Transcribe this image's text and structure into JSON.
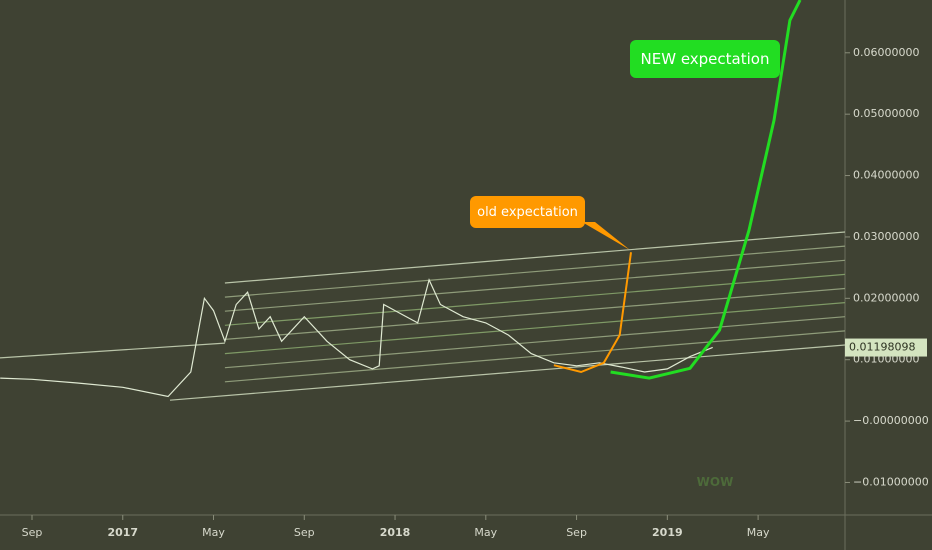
{
  "chart_data": {
    "type": "line",
    "xlim": [
      -1.41,
      35.83
    ],
    "ylim": [
      -0.0153,
      0.0686
    ],
    "xticks": [
      {
        "value": 0,
        "label": "Sep"
      },
      {
        "value": 4,
        "label": "2017"
      },
      {
        "value": 8,
        "label": "May"
      },
      {
        "value": 12,
        "label": "Sep"
      },
      {
        "value": 16,
        "label": "2018"
      },
      {
        "value": 20,
        "label": "May"
      },
      {
        "value": 24,
        "label": "Sep"
      },
      {
        "value": 28,
        "label": "2019"
      },
      {
        "value": 32,
        "label": "May"
      }
    ],
    "yticks": [
      {
        "value": 0.06,
        "label": "0.06000000"
      },
      {
        "value": 0.05,
        "label": "0.05000000"
      },
      {
        "value": 0.04,
        "label": "0.04000000"
      },
      {
        "value": 0.03,
        "label": "0.03000000"
      },
      {
        "value": 0.02,
        "label": "0.02000000"
      },
      {
        "value": 0.01,
        "label": "0.01000000"
      },
      {
        "value": 0,
        "label": "−0.00000000"
      },
      {
        "value": -0.01,
        "label": "−0.01000000"
      }
    ],
    "series": [
      {
        "color": "#dfe9d2",
        "x": [
          -1.4,
          0,
          2,
          4,
          6,
          7,
          7.6,
          8,
          8.5,
          9,
          9.5,
          10,
          10.5,
          11,
          12,
          13,
          14,
          15,
          15.3,
          15.5,
          16,
          17,
          17.5,
          18,
          19,
          20,
          21,
          22,
          23,
          24,
          25,
          26,
          27,
          28,
          29,
          30
        ],
        "values": [
          0.007,
          0.0068,
          0.0062,
          0.0055,
          0.004,
          0.008,
          0.02,
          0.018,
          0.013,
          0.019,
          0.021,
          0.015,
          0.017,
          0.013,
          0.017,
          0.013,
          0.01,
          0.0085,
          0.009,
          0.019,
          0.018,
          0.016,
          0.023,
          0.019,
          0.017,
          0.016,
          0.014,
          0.011,
          0.0095,
          0.009,
          0.0095,
          0.0088,
          0.008,
          0.0085,
          0.0105,
          0.012
        ]
      }
    ],
    "channel_lines": [
      {
        "x": [
          6.08,
          35.83
        ],
        "values": [
          0.0034,
          0.0124
        ],
        "color": "#b9c4a8"
      },
      {
        "x": [
          8.5,
          35.83
        ],
        "values": [
          0.0064,
          0.0147
        ],
        "color": "#8f9c7a"
      },
      {
        "x": [
          8.5,
          35.83
        ],
        "values": [
          0.0087,
          0.017
        ],
        "color": "#8f9c7a"
      },
      {
        "x": [
          8.5,
          35.83
        ],
        "values": [
          0.011,
          0.0193
        ],
        "color": "#7f9a66"
      },
      {
        "x": [
          8.5,
          35.83
        ],
        "values": [
          0.0133,
          0.0216
        ],
        "color": "#8f9c7a"
      },
      {
        "x": [
          8.5,
          35.83
        ],
        "values": [
          0.0156,
          0.0239
        ],
        "color": "#7f9a66"
      },
      {
        "x": [
          8.5,
          35.83
        ],
        "values": [
          0.0179,
          0.0262
        ],
        "color": "#8f9c7a"
      },
      {
        "x": [
          8.5,
          35.83
        ],
        "values": [
          0.0202,
          0.0285
        ],
        "color": "#8f9c7a"
      },
      {
        "x": [
          8.5,
          35.83
        ],
        "values": [
          0.0225,
          0.0308
        ],
        "color": "#b9c4a8"
      },
      {
        "x": [
          -1.41,
          8.5
        ],
        "values": [
          0.0103,
          0.0127
        ],
        "color": "#b9c4a8"
      }
    ],
    "curves": [
      {
        "color": "#ff9900",
        "x": [
          23.0,
          24.2,
          25.2,
          25.9,
          26.4
        ],
        "values": [
          0.0091,
          0.008,
          0.0095,
          0.014,
          0.0275
        ]
      },
      {
        "color": "#22dd22",
        "x": [
          25.5,
          27.2,
          29.0,
          30.3,
          31.6,
          32.7,
          33.4,
          33.85
        ],
        "values": [
          0.008,
          0.007,
          0.0086,
          0.0148,
          0.0311,
          0.049,
          0.0653,
          0.0686
        ]
      }
    ],
    "last_value": 0.01198098,
    "annotations": [
      "NEW expectation",
      "old expectation",
      "WOW"
    ]
  }
}
